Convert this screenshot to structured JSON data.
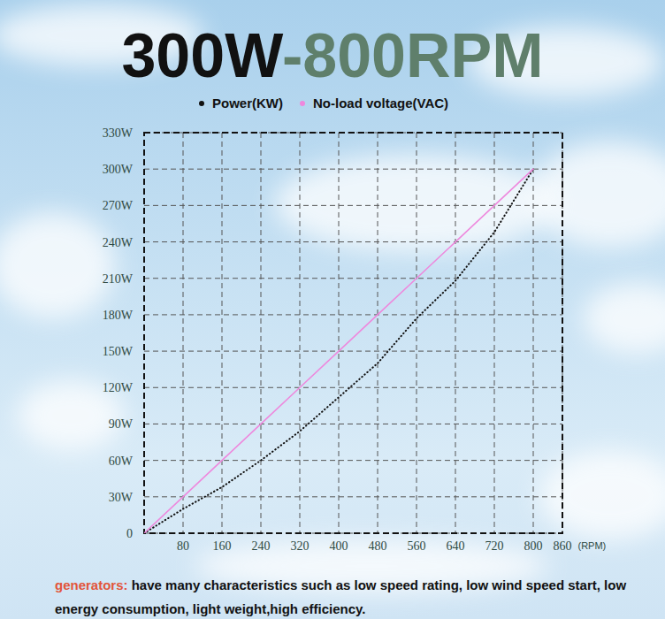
{
  "chart_data": {
    "type": "line",
    "title": "300W-800RPM",
    "x": [
      0,
      80,
      160,
      240,
      320,
      400,
      480,
      560,
      640,
      720,
      800
    ],
    "series": [
      {
        "name": "Power(KW)",
        "color": "#111111",
        "line_style": "dotted",
        "values": [
          0,
          20,
          38,
          60,
          84,
          112,
          140,
          177,
          208,
          248,
          300
        ]
      },
      {
        "name": "No-load voltage(VAC)",
        "color": "#ee88dd",
        "line_style": "solid",
        "values": [
          0,
          30,
          60,
          90,
          120,
          150,
          180,
          210,
          240,
          270,
          300
        ]
      }
    ],
    "xlim": [
      0,
      860
    ],
    "xticks": [
      80,
      160,
      240,
      320,
      400,
      480,
      560,
      640,
      720,
      800,
      860
    ],
    "xlabel": "(RPM)",
    "ylim": [
      0,
      330
    ],
    "yticks": [
      0,
      {
        "value": 30,
        "label": "30W"
      },
      {
        "value": 60,
        "label": "60W"
      },
      {
        "value": 90,
        "label": "90W"
      },
      {
        "value": 120,
        "label": "120W"
      },
      {
        "value": 150,
        "label": "150W"
      },
      {
        "value": 180,
        "label": "180W"
      },
      {
        "value": 210,
        "label": "210W"
      },
      {
        "value": 240,
        "label": "240W"
      },
      {
        "value": 270,
        "label": "270W"
      },
      {
        "value": 300,
        "label": "300W"
      },
      {
        "value": 330,
        "label": "330W"
      }
    ],
    "grid": true,
    "legend": "top",
    "annotations": [
      {
        "label": "generators:",
        "text": "have many characteristics such as low speed rating, low wind speed start,  low energy consumption, light weight,high efficiency."
      }
    ]
  }
}
